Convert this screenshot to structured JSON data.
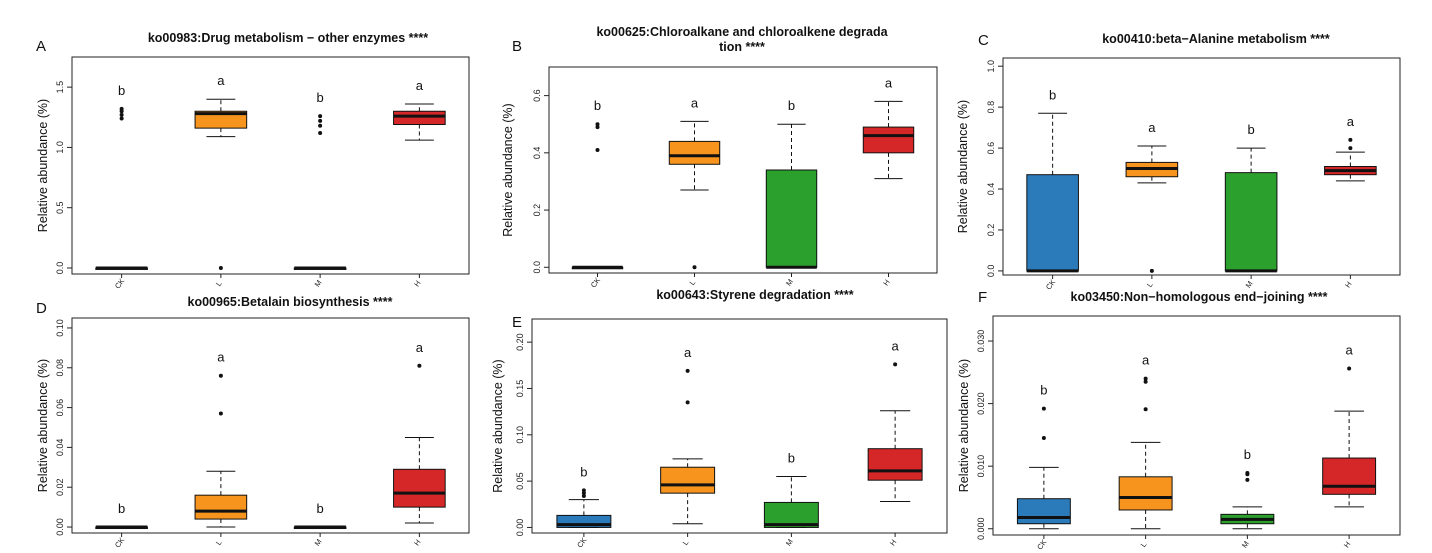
{
  "colors": {
    "CK": "#2b7bba",
    "L": "#f7941d",
    "M": "#2ca02c",
    "H": "#d62728"
  },
  "chart_data": [
    {
      "type": "box",
      "panel": "A",
      "title": "ko00983:Drug metabolism − other enzymes ****",
      "ylabel": "Relative abundance (%)",
      "categories": [
        "CK",
        "L",
        "M",
        "H"
      ],
      "ylim": [
        -0.05,
        1.75
      ],
      "yticks": [
        "0.0",
        "0.5",
        "1.0",
        "1.5"
      ],
      "boxes": [
        {
          "group": "CK",
          "fill": false,
          "min": 0,
          "q1": 0,
          "median": 0,
          "q3": 0,
          "max": 0,
          "outliers": [
            1.24,
            1.27,
            1.3,
            1.32
          ],
          "letter": "b"
        },
        {
          "group": "L",
          "fill": true,
          "min": 1.09,
          "q1": 1.16,
          "median": 1.28,
          "q3": 1.3,
          "max": 1.4,
          "outliers": [
            0.0
          ],
          "letter": "a"
        },
        {
          "group": "M",
          "fill": false,
          "min": 0,
          "q1": 0,
          "median": 0,
          "q3": 0,
          "max": 0,
          "outliers": [
            1.12,
            1.18,
            1.22,
            1.26
          ],
          "letter": "b"
        },
        {
          "group": "H",
          "fill": true,
          "min": 1.06,
          "q1": 1.19,
          "median": 1.26,
          "q3": 1.3,
          "max": 1.36,
          "outliers": [],
          "letter": "a"
        }
      ]
    },
    {
      "type": "box",
      "panel": "B",
      "title": "ko00625:Chloroalkane and chloroalkene degrada tion ****",
      "title_lines": [
        "ko00625:Chloroalkane and chloroalkene degrada",
        "tion ****"
      ],
      "ylabel": "Relative abundance (%)",
      "categories": [
        "CK",
        "L",
        "M",
        "H"
      ],
      "ylim": [
        -0.02,
        0.7
      ],
      "yticks": [
        "0.0",
        "0.2",
        "0.4",
        "0.6"
      ],
      "boxes": [
        {
          "group": "CK",
          "fill": false,
          "min": 0,
          "q1": 0,
          "median": 0,
          "q3": 0,
          "max": 0,
          "outliers": [
            0.41,
            0.49,
            0.5
          ],
          "letter": "b"
        },
        {
          "group": "L",
          "fill": true,
          "min": 0.27,
          "q1": 0.36,
          "median": 0.39,
          "q3": 0.44,
          "max": 0.51,
          "outliers": [
            0.0
          ],
          "letter": "a"
        },
        {
          "group": "M",
          "fill": true,
          "min": 0,
          "q1": 0,
          "median": 0.0,
          "q3": 0.34,
          "max": 0.5,
          "outliers": [],
          "letter": "b"
        },
        {
          "group": "H",
          "fill": true,
          "min": 0.31,
          "q1": 0.4,
          "median": 0.46,
          "q3": 0.49,
          "max": 0.58,
          "outliers": [],
          "letter": "a"
        }
      ]
    },
    {
      "type": "box",
      "panel": "C",
      "title": "ko00410:beta−Alanine metabolism ****",
      "ylabel": "Relative abundance (%)",
      "categories": [
        "CK",
        "L",
        "M",
        "H"
      ],
      "ylim": [
        -0.02,
        1.04
      ],
      "yticks": [
        "0.0",
        "0.2",
        "0.4",
        "0.6",
        "0.8",
        "1.0"
      ],
      "boxes": [
        {
          "group": "CK",
          "fill": true,
          "min": 0,
          "q1": 0,
          "median": 0.0,
          "q3": 0.47,
          "max": 0.77,
          "outliers": [],
          "letter": "b"
        },
        {
          "group": "L",
          "fill": true,
          "min": 0.43,
          "q1": 0.46,
          "median": 0.5,
          "q3": 0.53,
          "max": 0.61,
          "outliers": [
            0.0
          ],
          "letter": "a"
        },
        {
          "group": "M",
          "fill": true,
          "min": 0,
          "q1": 0,
          "median": 0.0,
          "q3": 0.48,
          "max": 0.6,
          "outliers": [],
          "letter": "b"
        },
        {
          "group": "H",
          "fill": true,
          "min": 0.44,
          "q1": 0.47,
          "median": 0.49,
          "q3": 0.51,
          "max": 0.58,
          "outliers": [
            0.6,
            0.64
          ],
          "letter": "a"
        }
      ]
    },
    {
      "type": "box",
      "panel": "D",
      "title": "ko00965:Betalain biosynthesis ****",
      "ylabel": "Relative abundance (%)",
      "categories": [
        "CK",
        "L",
        "M",
        "H"
      ],
      "ylim": [
        -0.003,
        0.105
      ],
      "yticks": [
        "0.00",
        "0.02",
        "0.04",
        "0.06",
        "0.08",
        "0.10"
      ],
      "boxes": [
        {
          "group": "CK",
          "fill": false,
          "min": 0,
          "q1": 0,
          "median": 0,
          "q3": 0,
          "max": 0,
          "outliers": [],
          "letter": "b"
        },
        {
          "group": "L",
          "fill": true,
          "min": 0.0,
          "q1": 0.004,
          "median": 0.008,
          "q3": 0.016,
          "max": 0.028,
          "outliers": [
            0.057,
            0.076
          ],
          "letter": "a"
        },
        {
          "group": "M",
          "fill": false,
          "min": 0,
          "q1": 0,
          "median": 0,
          "q3": 0,
          "max": 0,
          "outliers": [],
          "letter": "b"
        },
        {
          "group": "H",
          "fill": true,
          "min": 0.002,
          "q1": 0.01,
          "median": 0.017,
          "q3": 0.029,
          "max": 0.045,
          "outliers": [
            0.081
          ],
          "letter": "a"
        }
      ]
    },
    {
      "type": "box",
      "panel": "E",
      "title": "ko00643:Styrene degradation ****",
      "ylabel": "Relative abundance (%)",
      "categories": [
        "CK",
        "L",
        "M",
        "H"
      ],
      "ylim": [
        -0.006,
        0.225
      ],
      "yticks": [
        "0.00",
        "0.05",
        "0.10",
        "0.15",
        "0.20"
      ],
      "boxes": [
        {
          "group": "CK",
          "fill": true,
          "min": 0,
          "q1": 0.0,
          "median": 0.003,
          "q3": 0.013,
          "max": 0.03,
          "outliers": [
            0.034,
            0.037,
            0.04
          ],
          "letter": "b"
        },
        {
          "group": "L",
          "fill": true,
          "min": 0.004,
          "q1": 0.037,
          "median": 0.046,
          "q3": 0.065,
          "max": 0.074,
          "outliers": [
            0.135,
            0.169
          ],
          "letter": "a"
        },
        {
          "group": "M",
          "fill": true,
          "min": 0,
          "q1": 0.0,
          "median": 0.003,
          "q3": 0.027,
          "max": 0.055,
          "outliers": [],
          "letter": "b"
        },
        {
          "group": "H",
          "fill": true,
          "min": 0.028,
          "q1": 0.051,
          "median": 0.061,
          "q3": 0.085,
          "max": 0.126,
          "outliers": [
            0.176
          ],
          "letter": "a"
        }
      ]
    },
    {
      "type": "box",
      "panel": "F",
      "title": "ko03450:Non−homologous end−joining ****",
      "ylabel": "Relative abundance (%)",
      "categories": [
        "CK",
        "L",
        "M",
        "H"
      ],
      "ylim": [
        -0.001,
        0.034
      ],
      "yticks": [
        "0.000",
        "0.010",
        "0.020",
        "0.030"
      ],
      "boxes": [
        {
          "group": "CK",
          "fill": true,
          "min": 0.0,
          "q1": 0.0008,
          "median": 0.0018,
          "q3": 0.0048,
          "max": 0.0098,
          "outliers": [
            0.0145,
            0.0192
          ],
          "letter": "b"
        },
        {
          "group": "L",
          "fill": true,
          "min": 0.0,
          "q1": 0.003,
          "median": 0.005,
          "q3": 0.0083,
          "max": 0.0138,
          "outliers": [
            0.0191,
            0.0235,
            0.024
          ],
          "letter": "a"
        },
        {
          "group": "M",
          "fill": true,
          "min": 0.0,
          "q1": 0.0008,
          "median": 0.0015,
          "q3": 0.0023,
          "max": 0.0035,
          "outliers": [
            0.0078,
            0.0087,
            0.0089
          ],
          "letter": "b"
        },
        {
          "group": "H",
          "fill": true,
          "min": 0.0035,
          "q1": 0.0055,
          "median": 0.0068,
          "q3": 0.0113,
          "max": 0.0188,
          "outliers": [
            0.0256
          ],
          "letter": "a"
        }
      ]
    }
  ]
}
